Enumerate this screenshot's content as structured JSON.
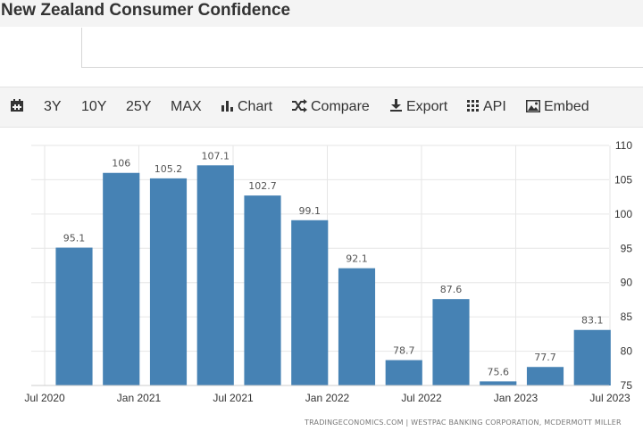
{
  "title": "New Zealand Consumer Confidence",
  "toolbar": {
    "items": [
      {
        "label": "",
        "icon": "calendar-icon"
      },
      {
        "label": "3Y"
      },
      {
        "label": "10Y"
      },
      {
        "label": "25Y"
      },
      {
        "label": "MAX"
      },
      {
        "label": "Chart",
        "icon": "bar-chart-icon"
      },
      {
        "label": "Compare",
        "icon": "shuffle-icon"
      },
      {
        "label": "Export",
        "icon": "download-icon"
      },
      {
        "label": "API",
        "icon": "grid-icon"
      },
      {
        "label": "Embed",
        "icon": "image-icon"
      }
    ]
  },
  "chart_data": {
    "type": "bar",
    "categories": [
      "2020-09",
      "2020-12",
      "2021-03",
      "2021-06",
      "2021-09",
      "2021-12",
      "2022-03",
      "2022-06",
      "2022-09",
      "2022-12",
      "2023-03",
      "2023-06"
    ],
    "values": [
      95.1,
      106,
      105.2,
      107.1,
      102.7,
      99.1,
      92.1,
      78.7,
      87.6,
      75.6,
      77.7,
      83.1
    ],
    "value_labels": [
      "95.1",
      "106",
      "105.2",
      "107.1",
      "102.7",
      "99.1",
      "92.1",
      "78.7",
      "87.6",
      "75.6",
      "77.7",
      "83.1"
    ],
    "x_tick_labels": [
      "Jul 2020",
      "Jan 2021",
      "Jul 2021",
      "Jan 2022",
      "Jul 2022",
      "Jan 2023",
      "Jul 2023"
    ],
    "y_tick_labels": [
      "110",
      "105",
      "100",
      "95",
      "90",
      "85",
      "80",
      "75"
    ],
    "ylim": [
      75,
      110
    ],
    "yaxis_side": "right",
    "grid": true,
    "bar_color": "#4682b4"
  },
  "source": "TRADINGECONOMICS.COM | WESTPAC BANKING CORPORATION, MCDERMOTT MILLER"
}
